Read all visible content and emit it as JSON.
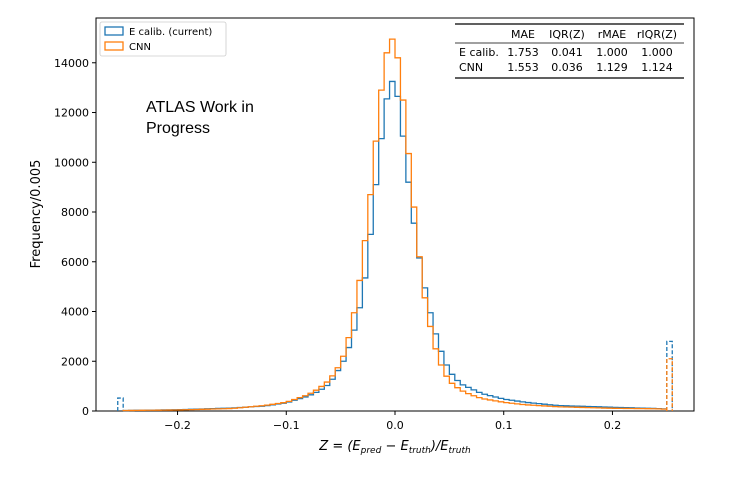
{
  "chart_data": {
    "type": "histogram",
    "xlabel_prefix": "Z = (E",
    "xlabel_sub1": "pred",
    "xlabel_mid": " − E",
    "xlabel_sub2": "truth",
    "xlabel_mid2": ")/E",
    "xlabel_sub3": "truth",
    "ylabel": "Frequency/0.005",
    "xlim": [
      -0.275,
      0.275
    ],
    "ylim": [
      0,
      15800
    ],
    "xticks": [
      -0.2,
      -0.1,
      0.0,
      0.1,
      0.2
    ],
    "xtick_labels": [
      "−0.2",
      "−0.1",
      "0.0",
      "0.1",
      "0.2"
    ],
    "yticks": [
      0,
      2000,
      4000,
      6000,
      8000,
      10000,
      12000,
      14000
    ],
    "ytick_labels": [
      "0",
      "2000",
      "4000",
      "6000",
      "8000",
      "10000",
      "12000",
      "14000"
    ],
    "annotation": [
      "ATLAS Work in",
      "Progress"
    ],
    "legend_position": "top-left",
    "series": [
      {
        "name": "E calib. (current)",
        "color": "#1f77b4",
        "overflow_low": 520,
        "overflow_high": 2800,
        "points": [
          [
            -0.25,
            20
          ],
          [
            -0.2,
            50
          ],
          [
            -0.15,
            120
          ],
          [
            -0.12,
            200
          ],
          [
            -0.1,
            330
          ],
          [
            -0.08,
            600
          ],
          [
            -0.07,
            800
          ],
          [
            -0.06,
            1100
          ],
          [
            -0.05,
            1800
          ],
          [
            -0.045,
            2200
          ],
          [
            -0.04,
            2900
          ],
          [
            -0.035,
            3600
          ],
          [
            -0.03,
            4700
          ],
          [
            -0.025,
            6000
          ],
          [
            -0.02,
            8200
          ],
          [
            -0.015,
            10000
          ],
          [
            -0.01,
            11900
          ],
          [
            -0.005,
            13200
          ],
          [
            0.0,
            13300
          ],
          [
            0.005,
            12000
          ],
          [
            0.01,
            10100
          ],
          [
            0.015,
            8300
          ],
          [
            0.02,
            6800
          ],
          [
            0.025,
            5500
          ],
          [
            0.03,
            4400
          ],
          [
            0.035,
            3500
          ],
          [
            0.04,
            2700
          ],
          [
            0.045,
            2100
          ],
          [
            0.05,
            1600
          ],
          [
            0.06,
            1100
          ],
          [
            0.07,
            900
          ],
          [
            0.08,
            700
          ],
          [
            0.1,
            480
          ],
          [
            0.12,
            350
          ],
          [
            0.15,
            220
          ],
          [
            0.2,
            150
          ],
          [
            0.24,
            100
          ],
          [
            0.25,
            80
          ]
        ]
      },
      {
        "name": "CNN",
        "color": "#ff7f0e",
        "overflow_low": 0,
        "overflow_high": 2100,
        "points": [
          [
            -0.25,
            20
          ],
          [
            -0.2,
            40
          ],
          [
            -0.15,
            100
          ],
          [
            -0.12,
            220
          ],
          [
            -0.1,
            350
          ],
          [
            -0.08,
            650
          ],
          [
            -0.07,
            900
          ],
          [
            -0.06,
            1250
          ],
          [
            -0.05,
            1900
          ],
          [
            -0.045,
            2500
          ],
          [
            -0.04,
            3400
          ],
          [
            -0.035,
            4500
          ],
          [
            -0.03,
            6000
          ],
          [
            -0.025,
            7700
          ],
          [
            -0.02,
            9700
          ],
          [
            -0.015,
            12000
          ],
          [
            -0.01,
            13800
          ],
          [
            -0.005,
            15000
          ],
          [
            0.0,
            14900
          ],
          [
            0.005,
            13500
          ],
          [
            0.01,
            11500
          ],
          [
            0.015,
            9200
          ],
          [
            0.02,
            7200
          ],
          [
            0.025,
            5200
          ],
          [
            0.03,
            3900
          ],
          [
            0.035,
            2900
          ],
          [
            0.04,
            2100
          ],
          [
            0.045,
            1600
          ],
          [
            0.05,
            1200
          ],
          [
            0.06,
            850
          ],
          [
            0.07,
            650
          ],
          [
            0.08,
            500
          ],
          [
            0.1,
            350
          ],
          [
            0.12,
            250
          ],
          [
            0.15,
            170
          ],
          [
            0.2,
            110
          ],
          [
            0.24,
            90
          ],
          [
            0.25,
            70
          ]
        ]
      }
    ],
    "table": {
      "headers": [
        "",
        "MAE",
        "IQR(Z)",
        "rMAE",
        "rIQR(Z)"
      ],
      "rows": [
        [
          "E calib.",
          "1.753",
          "0.041",
          "1.000",
          "1.000"
        ],
        [
          "CNN",
          "1.553",
          "0.036",
          "1.129",
          "1.124"
        ]
      ]
    }
  }
}
